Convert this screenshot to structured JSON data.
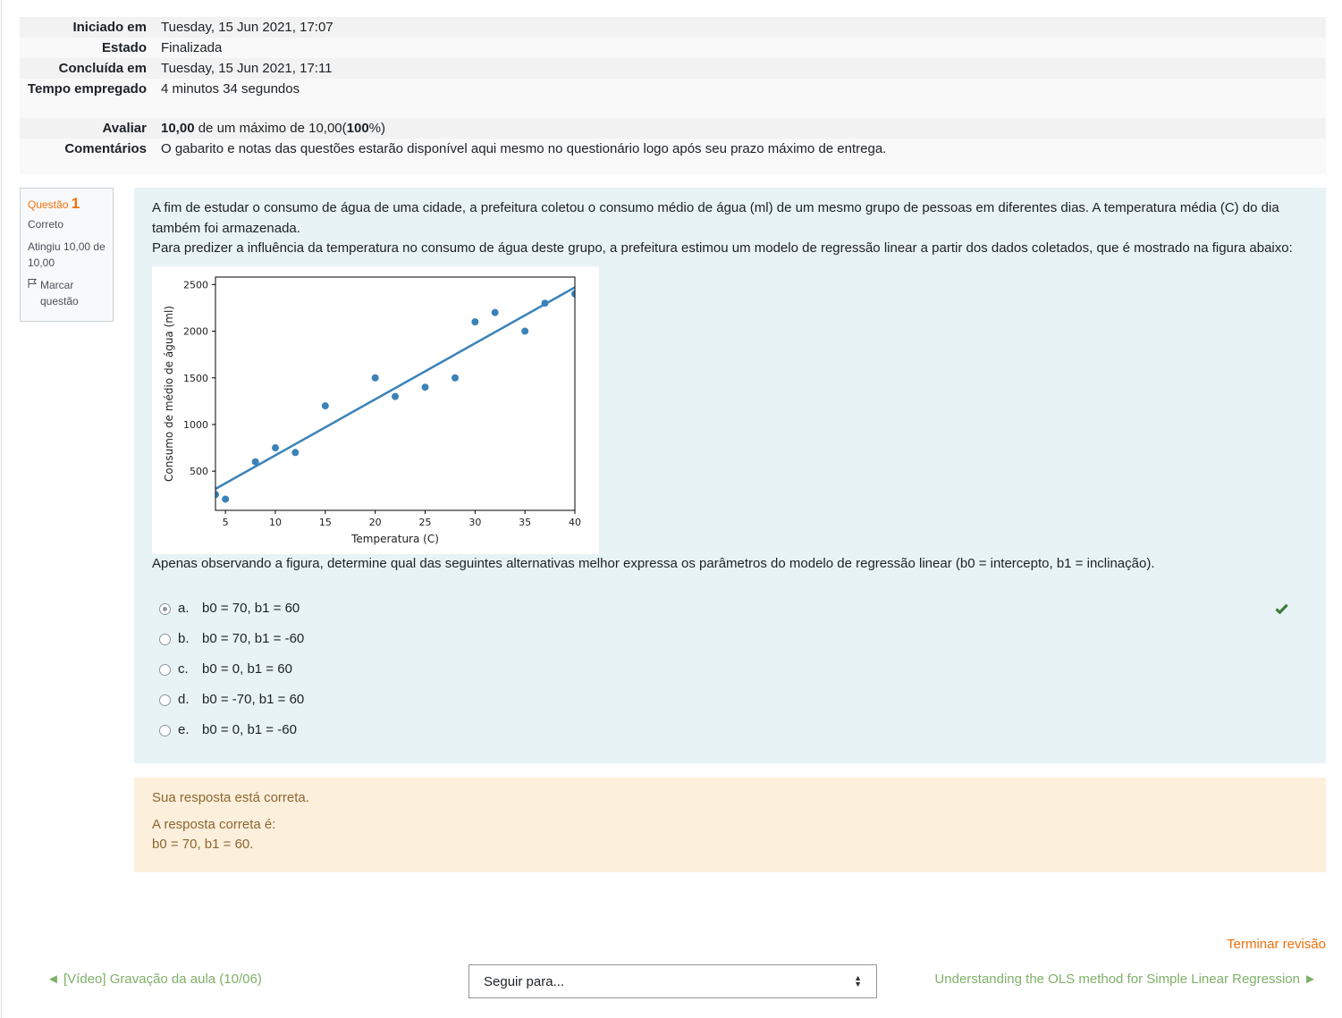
{
  "summary": {
    "rows": [
      {
        "label": "Iniciado em",
        "value": "Tuesday, 15 Jun 2021, 17:07"
      },
      {
        "label": "Estado",
        "value": "Finalizada"
      },
      {
        "label": "Concluída em",
        "value": "Tuesday, 15 Jun 2021, 17:11"
      },
      {
        "label": "Tempo empregado",
        "value": "4 minutos 34 segundos"
      },
      {
        "label": "Avaliar",
        "value_bold": "10,00",
        "value_mid": " de um máximo de 10,00(",
        "value_bold2": "100",
        "value_end": "%)"
      },
      {
        "label": "Comentários",
        "value": "O gabarito e notas das questões estarão disponível aqui mesmo no questionário logo após seu prazo máximo de entrega."
      }
    ]
  },
  "question_info": {
    "prefix": "Questão",
    "number": "1",
    "state": "Correto",
    "grade": "Atingiu 10,00 de 10,00",
    "flag_label": "Marcar questão"
  },
  "question": {
    "text1": "A fim de estudar o consumo de água de uma cidade, a prefeitura coletou o consumo médio de água (ml) de um mesmo grupo de pessoas em diferentes dias. A temperatura média (C) do dia também foi armazenada.",
    "text2": "Para predizer a influência da temperatura no consumo de água deste grupo, a prefeitura estimou um modelo de regressão linear a partir dos dados coletados, que é mostrado na figura abaixo:",
    "prompt": "Apenas observando a figura, determine qual das seguintes alternativas melhor expressa os parâmetros do modelo de regressão linear (b0 = intercepto, b1 = inclinação).",
    "answers": [
      {
        "letter": "a.",
        "text": "b0 = 70, b1 = 60",
        "checked": true,
        "correct": true
      },
      {
        "letter": "b.",
        "text": "b0 = 70, b1 = -60",
        "checked": false,
        "correct": false
      },
      {
        "letter": "c.",
        "text": "b0 = 0, b1 = 60",
        "checked": false,
        "correct": false
      },
      {
        "letter": "d.",
        "text": "b0 = -70, b1 = 60",
        "checked": false,
        "correct": false
      },
      {
        "letter": "e.",
        "text": "b0 = 0, b1 = -60",
        "checked": false,
        "correct": false
      }
    ]
  },
  "chart_data": {
    "type": "scatter",
    "xlabel": "Temperatura (C)",
    "ylabel": "Consumo de médio de água (ml)",
    "xlim": [
      4,
      40
    ],
    "ylim": [
      80,
      2580
    ],
    "xticks": [
      5,
      10,
      15,
      20,
      25,
      30,
      35,
      40
    ],
    "yticks": [
      500,
      1000,
      1500,
      2000,
      2500
    ],
    "points": [
      [
        4,
        250
      ],
      [
        5,
        200
      ],
      [
        8,
        600
      ],
      [
        10,
        750
      ],
      [
        12,
        700
      ],
      [
        15,
        1200
      ],
      [
        20,
        1500
      ],
      [
        22,
        1300
      ],
      [
        25,
        1400
      ],
      [
        28,
        1500
      ],
      [
        30,
        2100
      ],
      [
        32,
        2200
      ],
      [
        35,
        2000
      ],
      [
        37,
        2300
      ],
      [
        40,
        2400
      ]
    ],
    "regression_line": {
      "intercept": 70,
      "slope": 60
    },
    "color": "#3b82b8"
  },
  "feedback": {
    "specific": "Sua resposta está correta.",
    "right_answer_label": "A resposta correta é:",
    "right_answer": "b0 = 70, b1 = 60."
  },
  "footer": {
    "finish_review": "Terminar revisão",
    "prev_link": "◄ [Vídeo] Gravação da aula (10/06)",
    "jump_placeholder": "Seguir para...",
    "next_link": "Understanding the OLS method for Simple Linear Regression ►"
  },
  "colors": {
    "accent": "#f0700a",
    "link_green": "#7fb069",
    "correct_check": "#357a32",
    "question_bg": "#e7f3f5",
    "feedback_bg": "#fcefdc"
  }
}
